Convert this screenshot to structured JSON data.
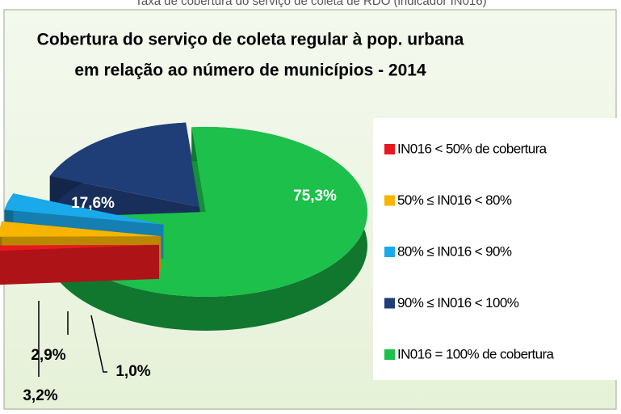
{
  "caption": "Taxa de cobertura do serviço de coleta de RDO (indicador IN016)",
  "chart_data": {
    "type": "pie",
    "title": [
      "Cobertura do serviço de coleta regular  à pop. urbana",
      "em relação ao número de municípios - 2014"
    ],
    "categories": [
      "IN016 < 50% de cobertura",
      "50% ≤ IN016 < 80%",
      "80% ≤ IN016 < 90%",
      "90% ≤ IN016 < 100%",
      "IN016 =  100% de cobertura"
    ],
    "values": [
      1.0,
      2.9,
      3.2,
      17.6,
      75.3
    ],
    "value_labels": [
      "1,0%",
      "2,9%",
      "3,2%",
      "17,6%",
      "75,3%"
    ],
    "colors": [
      "#e8191e",
      "#f7b500",
      "#1aa9ea",
      "#1f3e78",
      "#1cc04b"
    ],
    "legend": "right"
  }
}
